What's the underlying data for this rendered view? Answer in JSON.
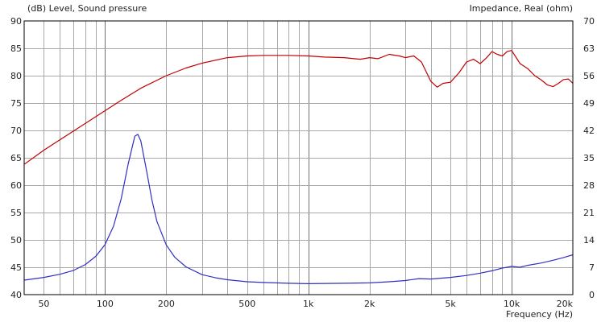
{
  "chart_data": {
    "type": "line",
    "title": "",
    "ylabel_left": "(dB)  Level, Sound pressure",
    "ylabel_right": "Impedance, Real  (ohm)",
    "xlabel": "Frequency  (Hz)",
    "x_scale": "log",
    "xlim": [
      40,
      20000
    ],
    "ylim_left": [
      40,
      90
    ],
    "ylim_right": [
      0,
      70
    ],
    "grid": true,
    "x_tick_labels": [
      "50",
      "100",
      "200",
      "500",
      "1k",
      "2k",
      "5k",
      "10k",
      "20k"
    ],
    "y_left_tick_labels": [
      "40",
      "45",
      "50",
      "55",
      "60",
      "65",
      "70",
      "75",
      "80",
      "85",
      "90"
    ],
    "y_right_tick_labels": [
      "0",
      "7",
      "14",
      "21",
      "28",
      "35",
      "42",
      "49",
      "56",
      "63",
      "70"
    ],
    "series": [
      {
        "name": "",
        "axis": "left",
        "color": "#c00000",
        "x": [
          40,
          50,
          60,
          70,
          80,
          100,
          120,
          150,
          200,
          250,
          300,
          400,
          500,
          600,
          700,
          800,
          1000,
          1200,
          1500,
          1800,
          2000,
          2200,
          2500,
          2800,
          3000,
          3300,
          3600,
          4000,
          4300,
          4600,
          5000,
          5500,
          6000,
          6500,
          7000,
          7500,
          8000,
          8500,
          9000,
          9500,
          10000,
          11000,
          12000,
          13000,
          14000,
          15000,
          16000,
          17000,
          18000,
          19000,
          20000
        ],
        "y": [
          63.8,
          66.4,
          68.3,
          69.9,
          71.3,
          73.6,
          75.5,
          77.7,
          80.0,
          81.4,
          82.3,
          83.3,
          83.6,
          83.7,
          83.7,
          83.7,
          83.6,
          83.4,
          83.3,
          83.0,
          83.3,
          83.1,
          83.9,
          83.6,
          83.3,
          83.6,
          82.5,
          79.0,
          77.9,
          78.6,
          78.8,
          80.5,
          82.5,
          83.0,
          82.2,
          83.2,
          84.4,
          83.9,
          83.6,
          84.4,
          84.6,
          82.2,
          81.3,
          80.0,
          79.2,
          78.3,
          78.0,
          78.6,
          79.3,
          79.4,
          78.6
        ]
      },
      {
        "name": "",
        "axis": "right",
        "color": "#3030c0",
        "x": [
          40,
          50,
          60,
          70,
          80,
          90,
          100,
          110,
          120,
          130,
          140,
          145,
          150,
          160,
          170,
          180,
          200,
          220,
          250,
          300,
          350,
          400,
          500,
          600,
          800,
          1000,
          1500,
          2000,
          2500,
          3000,
          3500,
          4000,
          5000,
          6000,
          7000,
          8000,
          9000,
          10000,
          11000,
          12000,
          14000,
          16000,
          18000,
          20000
        ],
        "y": [
          3.7,
          4.4,
          5.2,
          6.2,
          7.7,
          9.8,
          12.8,
          17.5,
          24.5,
          33.5,
          40.5,
          41.0,
          39.3,
          31.7,
          24.2,
          18.7,
          12.7,
          9.6,
          7.1,
          5.1,
          4.3,
          3.8,
          3.3,
          3.1,
          2.9,
          2.8,
          2.9,
          3.0,
          3.3,
          3.6,
          4.1,
          4.0,
          4.4,
          4.9,
          5.5,
          6.1,
          6.8,
          7.2,
          7.0,
          7.5,
          8.1,
          8.8,
          9.5,
          10.2
        ]
      }
    ]
  }
}
